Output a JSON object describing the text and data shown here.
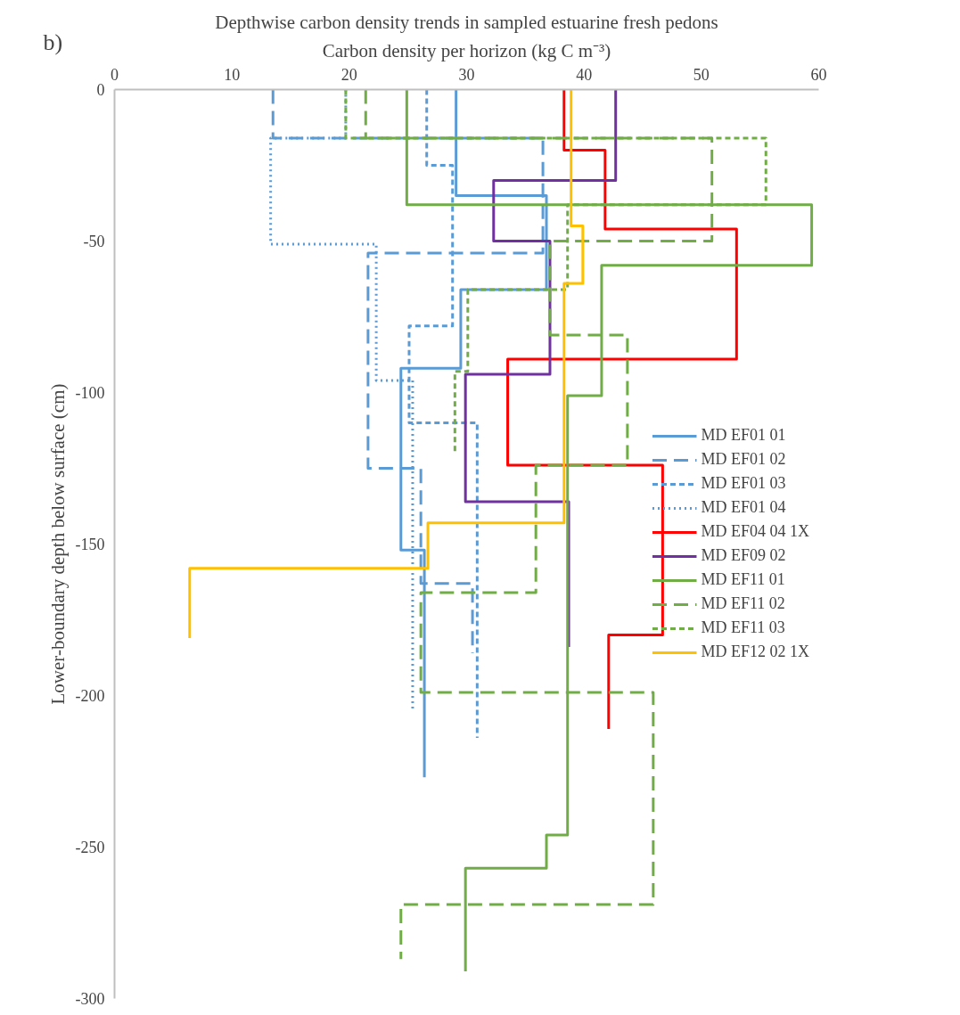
{
  "chart_data": {
    "type": "line",
    "title": "Depthwise carbon density trends in sampled estuarine fresh pedons",
    "xlabel": "Carbon density per horizon (kg C m⁻³)",
    "ylabel": "Lower-boundary depth below surface (cm)",
    "annotations": [
      "b)"
    ],
    "xlim": [
      0,
      60
    ],
    "xticks": [
      0,
      10,
      20,
      30,
      40,
      50,
      60
    ],
    "ylim": [
      -300,
      0
    ],
    "yticks": [
      0,
      -50,
      -100,
      -150,
      -200,
      -250,
      -300
    ],
    "legend": "right",
    "series": [
      {
        "name": "MD EF01 01",
        "color": "#5b9bd5",
        "line_style": "solid",
        "x": [
          29.1,
          29.1,
          36.8,
          36.8,
          29.5,
          29.5,
          24.4,
          24.4,
          26.4,
          26.4
        ],
        "values": [
          0,
          -35,
          -35,
          -66,
          -66,
          -92,
          -92,
          -152,
          -152,
          -227
        ]
      },
      {
        "name": "MD EF01 02",
        "color": "#5b9bd5",
        "line_style": "long dashed",
        "x": [
          13.5,
          13.5,
          36.5,
          36.5,
          21.6,
          21.6,
          26.1,
          26.1,
          30.5,
          30.5
        ],
        "values": [
          0,
          -16,
          -16,
          -54,
          -54,
          -125,
          -125,
          -163,
          -163,
          -186
        ]
      },
      {
        "name": "MD EF01 03",
        "color": "#5b9bd5",
        "line_style": "dashed",
        "x": [
          26.6,
          26.6,
          28.8,
          28.8,
          25.1,
          25.1,
          30.9,
          30.9
        ],
        "values": [
          0,
          -25,
          -25,
          -78,
          -78,
          -110,
          -110,
          -214
        ]
      },
      {
        "name": "MD EF01 04",
        "color": "#5b9bd5",
        "line_style": "dotted",
        "x": [
          19.7,
          19.7,
          13.3,
          13.3,
          22.3,
          22.3,
          25.4,
          25.4
        ],
        "values": [
          0,
          -16,
          -16,
          -51,
          -51,
          -96,
          -96,
          -205
        ]
      },
      {
        "name": "MD EF04 04 1X",
        "color": "#ff0000",
        "line_style": "solid",
        "x": [
          38.3,
          38.3,
          41.8,
          41.8,
          53.0,
          53.0,
          33.5,
          33.5,
          46.7,
          46.7,
          42.1,
          42.1
        ],
        "values": [
          0,
          -20,
          -20,
          -46,
          -46,
          -89,
          -89,
          -124,
          -124,
          -180,
          -180,
          -211
        ]
      },
      {
        "name": "MD EF09 02",
        "color": "#7030a0",
        "line_style": "solid",
        "x": [
          42.7,
          42.7,
          32.3,
          32.3,
          37.1,
          37.1,
          29.9,
          29.9,
          38.7,
          38.7
        ],
        "values": [
          0,
          -30,
          -30,
          -50,
          -50,
          -94,
          -94,
          -136,
          -136,
          -184
        ]
      },
      {
        "name": "MD EF11 01",
        "color": "#70ad47",
        "line_style": "solid",
        "x": [
          24.9,
          24.9,
          59.4,
          59.4,
          41.5,
          41.5,
          38.6,
          38.6,
          36.8,
          36.8,
          29.9,
          29.9
        ],
        "values": [
          0,
          -38,
          -38,
          -58,
          -58,
          -101,
          -101,
          -246,
          -246,
          -257,
          -257,
          -291
        ]
      },
      {
        "name": "MD EF11 02",
        "color": "#70ad47",
        "line_style": "long dashed",
        "x": [
          21.4,
          21.4,
          50.9,
          50.9,
          37.1,
          37.1,
          43.7,
          43.7,
          35.9,
          35.9,
          26.1,
          26.1,
          45.9,
          45.9,
          24.4,
          24.4
        ],
        "values": [
          0,
          -16,
          -16,
          -50,
          -50,
          -81,
          -81,
          -124,
          -124,
          -166,
          -166,
          -199,
          -199,
          -269,
          -269,
          -287
        ]
      },
      {
        "name": "MD EF11 03",
        "color": "#70ad47",
        "line_style": "dashed",
        "x": [
          19.7,
          19.7,
          55.5,
          55.5,
          38.6,
          38.6,
          30.1,
          30.1,
          29.0,
          29.0
        ],
        "values": [
          0,
          -16,
          -16,
          -38,
          -38,
          -66,
          -66,
          -93,
          -93,
          -120
        ]
      },
      {
        "name": "MD EF12 02 1X",
        "color": "#ffc000",
        "line_style": "solid",
        "x": [
          38.9,
          38.9,
          39.9,
          39.9,
          38.3,
          38.3,
          26.7,
          26.7,
          6.4,
          6.4
        ],
        "values": [
          0,
          -45,
          -45,
          -64,
          -64,
          -143,
          -143,
          -158,
          -158,
          -181
        ]
      }
    ]
  }
}
